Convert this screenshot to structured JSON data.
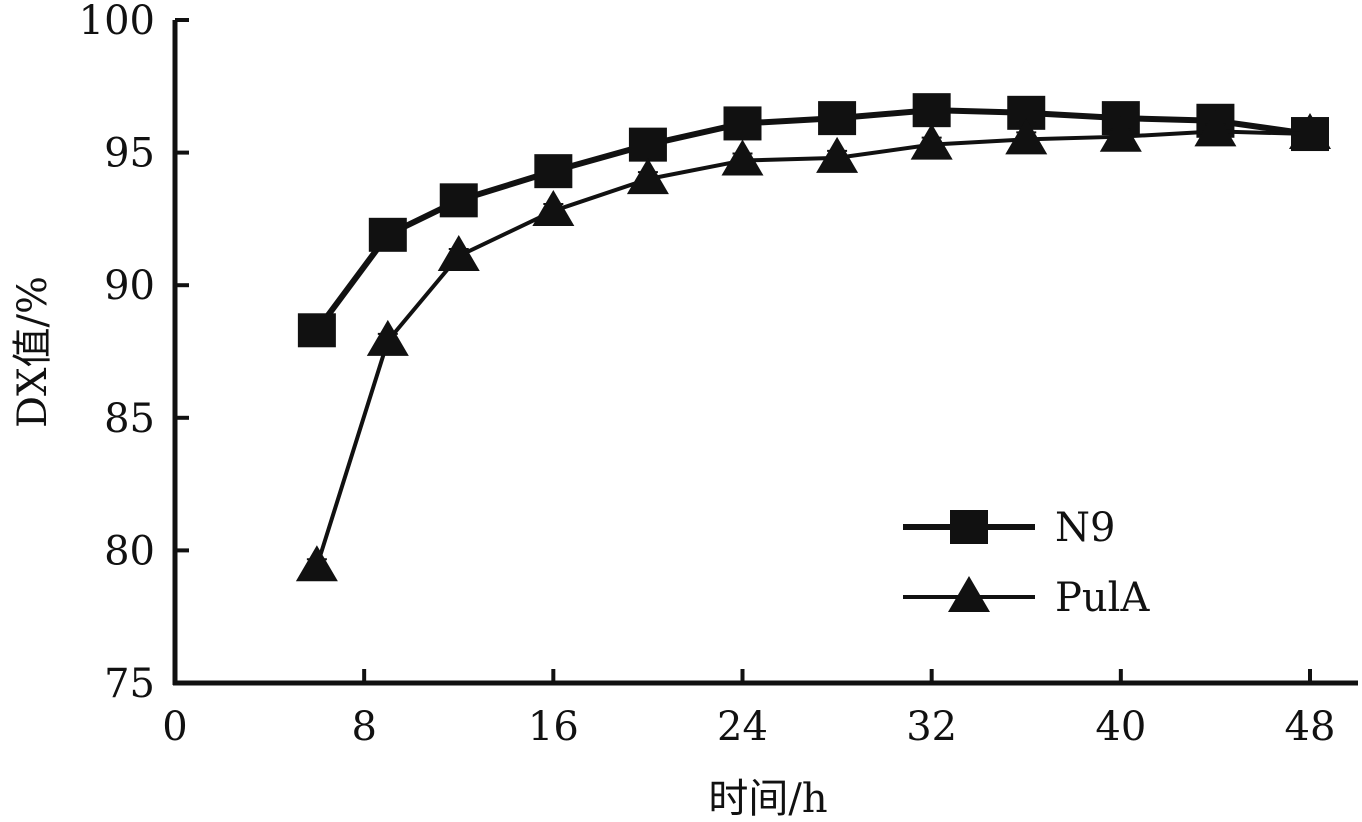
{
  "chart_data": {
    "type": "line",
    "title": "",
    "xlabel": "时间/h",
    "ylabel": "DX值/%",
    "xlim": [
      0,
      48
    ],
    "ylim": [
      75,
      100
    ],
    "xticks": [
      "0",
      "8",
      "16",
      "24",
      "32",
      "40",
      "48"
    ],
    "yticks": [
      "75",
      "80",
      "85",
      "90",
      "95",
      "100"
    ],
    "grid": false,
    "legend_position": "bottom-right",
    "series": [
      {
        "name": "N9",
        "marker": "square",
        "x": [
          6,
          9,
          12,
          16,
          20,
          24,
          28,
          32,
          36,
          40,
          44,
          48
        ],
        "y": [
          88.3,
          91.9,
          93.2,
          94.3,
          95.3,
          96.1,
          96.3,
          96.6,
          96.5,
          96.3,
          96.2,
          95.7
        ]
      },
      {
        "name": "PulA",
        "marker": "triangle",
        "x": [
          6,
          9,
          12,
          16,
          20,
          24,
          28,
          32,
          36,
          40,
          44,
          48
        ],
        "y": [
          79.4,
          87.9,
          91.1,
          92.8,
          94.0,
          94.7,
          94.8,
          95.3,
          95.5,
          95.6,
          95.8,
          95.7
        ]
      }
    ]
  }
}
